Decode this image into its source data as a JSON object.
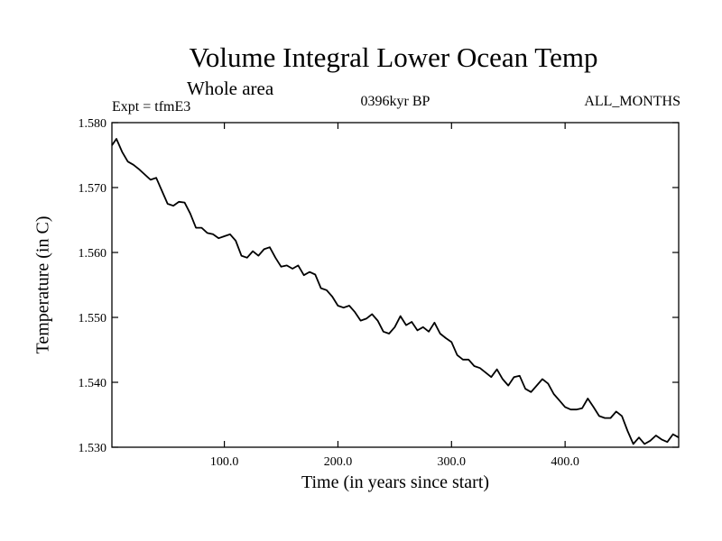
{
  "chart_data": {
    "type": "line",
    "title": "Volume Integral Lower Ocean Temp",
    "subtitle": "Whole area",
    "experiment": "Expt = tfmE3",
    "period": "0396kyr BP",
    "months": "ALL_MONTHS",
    "xlabel": "Time (in years since start)",
    "ylabel": "Temperature (in C)",
    "xlim": [
      1,
      500
    ],
    "ylim": [
      1.53,
      1.58
    ],
    "x_ticks": [
      100,
      200,
      300,
      400
    ],
    "x_tick_labels": [
      "100.0",
      "200.0",
      "300.0",
      "400.0"
    ],
    "y_ticks": [
      1.53,
      1.54,
      1.55,
      1.56,
      1.57,
      1.58
    ],
    "y_tick_labels": [
      "1.530",
      "1.540",
      "1.550",
      "1.560",
      "1.570",
      "1.580"
    ],
    "grid": false,
    "series": [
      {
        "color": "#000000",
        "x": [
          1,
          5,
          10,
          15,
          20,
          25,
          30,
          35,
          40,
          45,
          50,
          55,
          60,
          65,
          70,
          75,
          80,
          85,
          90,
          95,
          100,
          105,
          110,
          115,
          120,
          125,
          130,
          135,
          140,
          145,
          150,
          155,
          160,
          165,
          170,
          175,
          180,
          185,
          190,
          195,
          200,
          205,
          210,
          215,
          220,
          225,
          230,
          235,
          240,
          245,
          250,
          255,
          260,
          265,
          270,
          275,
          280,
          285,
          290,
          295,
          300,
          305,
          310,
          315,
          320,
          325,
          330,
          335,
          340,
          345,
          350,
          355,
          360,
          365,
          370,
          375,
          380,
          385,
          390,
          395,
          400,
          405,
          410,
          415,
          420,
          425,
          430,
          435,
          440,
          445,
          450,
          455,
          460,
          465,
          470,
          475,
          480,
          485,
          490,
          495,
          500
        ],
        "y": [
          1.5765,
          1.5775,
          1.5755,
          1.574,
          1.5735,
          1.5728,
          1.572,
          1.5712,
          1.5715,
          1.5695,
          1.5675,
          1.5672,
          1.5678,
          1.5677,
          1.566,
          1.5638,
          1.5638,
          1.563,
          1.5628,
          1.5622,
          1.5625,
          1.5628,
          1.5618,
          1.5595,
          1.5592,
          1.5602,
          1.5595,
          1.5605,
          1.5608,
          1.5592,
          1.5578,
          1.558,
          1.5575,
          1.558,
          1.5565,
          1.557,
          1.5566,
          1.5545,
          1.5542,
          1.5532,
          1.5518,
          1.5515,
          1.5518,
          1.5508,
          1.5495,
          1.5498,
          1.5505,
          1.5495,
          1.5478,
          1.5475,
          1.5485,
          1.5502,
          1.5488,
          1.5493,
          1.548,
          1.5485,
          1.5478,
          1.5492,
          1.5475,
          1.5468,
          1.5462,
          1.5442,
          1.5435,
          1.5435,
          1.5425,
          1.5422,
          1.5415,
          1.5408,
          1.542,
          1.5405,
          1.5395,
          1.5408,
          1.541,
          1.539,
          1.5385,
          1.5395,
          1.5405,
          1.5398,
          1.5382,
          1.5372,
          1.5362,
          1.5358,
          1.5358,
          1.536,
          1.5375,
          1.5362,
          1.5348,
          1.5345,
          1.5345,
          1.5355,
          1.5348,
          1.5325,
          1.5305,
          1.5315,
          1.5305,
          1.531,
          1.5318,
          1.5312,
          1.5308,
          1.532,
          1.5315
        ]
      }
    ]
  }
}
